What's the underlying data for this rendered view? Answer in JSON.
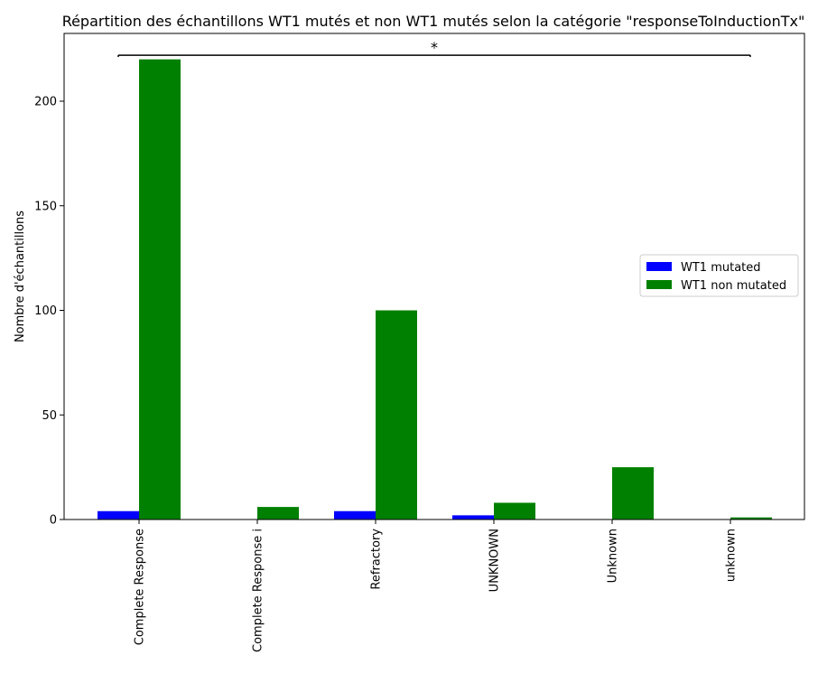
{
  "chart_data": {
    "type": "bar",
    "title": "Répartition des échantillons WT1 mutés et non WT1 mutés selon la catégorie \"responseToInductionTx\"",
    "xlabel": "",
    "ylabel": "Nombre d'échantillons",
    "categories": [
      "Complete Response",
      "Complete Response i",
      "Refractory",
      "UNKNOWN",
      "Unknown",
      "unknown"
    ],
    "series": [
      {
        "name": "WT1 mutated",
        "color": "#0000ff",
        "values": [
          4,
          0,
          4,
          2,
          0,
          0
        ]
      },
      {
        "name": "WT1 non mutated",
        "color": "#008000",
        "values": [
          220,
          6,
          100,
          8,
          25,
          1
        ]
      }
    ],
    "ylim": [
      0,
      225
    ],
    "yticks": [
      0,
      50,
      100,
      150,
      200
    ],
    "grid": false,
    "legend_position": "center-right",
    "annotation": {
      "text": "*",
      "y": 222
    }
  }
}
